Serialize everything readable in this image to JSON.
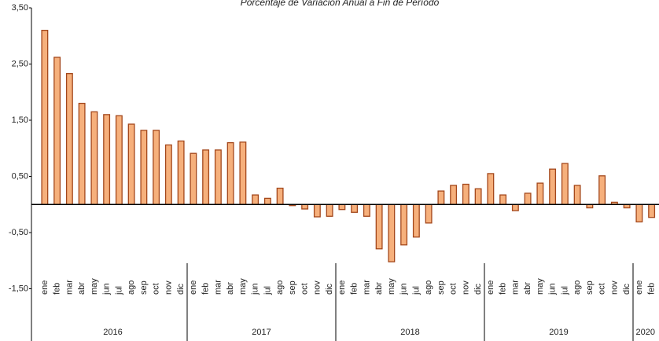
{
  "chart_data": {
    "type": "bar",
    "title": "Porcentaje de Variación Anual a Fin de Período",
    "color": "#f6b07c",
    "edge_color": "#a3471b",
    "ylim": [
      -2.5,
      3.5
    ],
    "yticks": [
      {
        "value": -1.5,
        "label": "-1,50"
      },
      {
        "value": -0.5,
        "label": "-0,50"
      },
      {
        "value": 0.5,
        "label": "0,50"
      },
      {
        "value": 1.5,
        "label": "1,50"
      },
      {
        "value": 2.5,
        "label": "2,50"
      },
      {
        "value": 3.5,
        "label": "3,50"
      }
    ],
    "groups": [
      {
        "name": "2016",
        "categories": [
          "ene",
          "feb",
          "mar",
          "abr",
          "may",
          "jun",
          "jul",
          "ago",
          "sep",
          "oct",
          "nov",
          "dic"
        ],
        "values": [
          3.1,
          2.62,
          2.33,
          1.8,
          1.65,
          1.6,
          1.58,
          1.43,
          1.32,
          1.32,
          1.06,
          1.13
        ]
      },
      {
        "name": "2017",
        "categories": [
          "ene",
          "feb",
          "mar",
          "abr",
          "may",
          "jun",
          "jul",
          "ago",
          "sep",
          "oct",
          "nov",
          "dic"
        ],
        "values": [
          0.91,
          0.97,
          0.97,
          1.1,
          1.11,
          0.17,
          0.11,
          0.29,
          -0.02,
          -0.08,
          -0.22,
          -0.21
        ]
      },
      {
        "name": "2018",
        "categories": [
          "ene",
          "feb",
          "mar",
          "abr",
          "may",
          "jun",
          "jul",
          "ago",
          "sep",
          "oct",
          "nov",
          "dic"
        ],
        "values": [
          -0.09,
          -0.14,
          -0.21,
          -0.79,
          -1.02,
          -0.72,
          -0.58,
          -0.33,
          0.24,
          0.34,
          0.36,
          0.28
        ]
      },
      {
        "name": "2019",
        "categories": [
          "ene",
          "feb",
          "mar",
          "abr",
          "may",
          "jun",
          "jul",
          "ago",
          "sep",
          "oct",
          "nov",
          "dic"
        ],
        "values": [
          0.55,
          0.17,
          -0.11,
          0.2,
          0.38,
          0.63,
          0.73,
          0.34,
          -0.06,
          0.51,
          0.04,
          -0.06
        ]
      },
      {
        "name": "2020",
        "categories": [
          "ene",
          "feb"
        ],
        "values": [
          -0.31,
          -0.23
        ]
      }
    ]
  }
}
